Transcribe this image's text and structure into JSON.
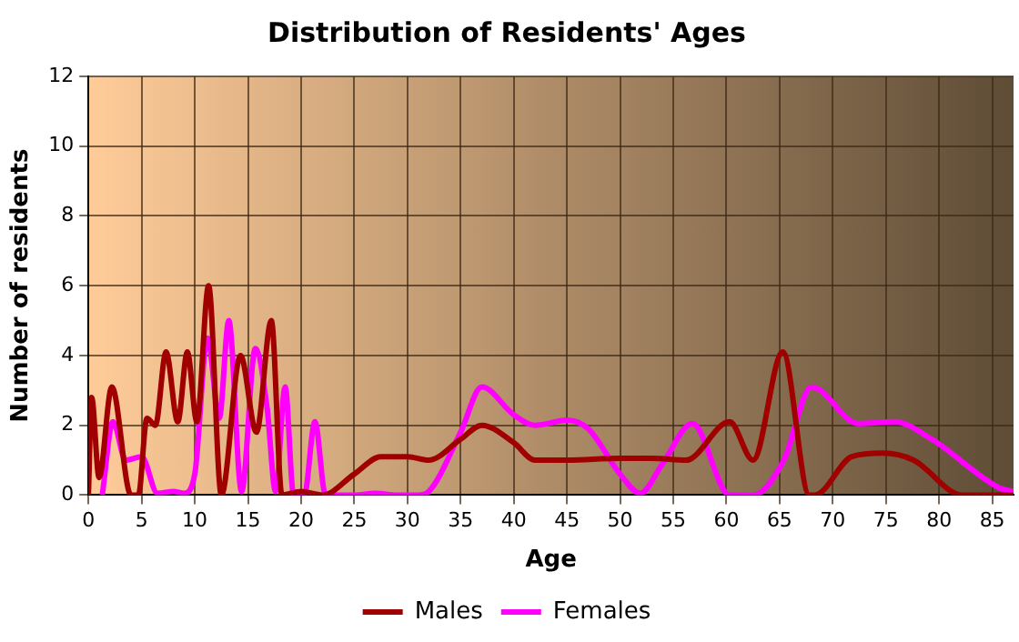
{
  "chart_data": {
    "type": "line",
    "title": "Distribution of Residents' Ages",
    "xlabel": "Age",
    "ylabel": "Number of residents",
    "xlim": [
      0,
      87
    ],
    "xticks": [
      0,
      5,
      10,
      15,
      20,
      25,
      30,
      35,
      40,
      45,
      50,
      55,
      60,
      65,
      70,
      75,
      80,
      85
    ],
    "ylim": [
      0,
      12
    ],
    "yticks": [
      0,
      2,
      4,
      6,
      8,
      10,
      12
    ],
    "grid": true,
    "legend": "bottom",
    "marker": "none",
    "line_style": "solid",
    "series": [
      {
        "name": "Males",
        "color": "#a00000",
        "x": [
          0,
          0.3,
          1,
          2.2,
          4,
          4.7,
          5.5,
          6.3,
          7.3,
          8.4,
          9.3,
          10.2,
          11.3,
          12.5,
          14.3,
          15.8,
          17.2,
          18.2,
          20,
          22,
          25,
          27.5,
          30,
          32,
          35,
          37,
          40,
          42,
          45,
          50,
          53,
          56.2,
          60.3,
          62.5,
          65.3,
          67.8,
          68.3,
          71.8,
          74.7,
          77.6,
          82.2,
          87
        ],
        "values": [
          0,
          2.8,
          0.5,
          3.1,
          0,
          0,
          2.2,
          2,
          4.1,
          2.1,
          4.1,
          2.1,
          6,
          0,
          4,
          1.8,
          5,
          0,
          0.1,
          0,
          0.6,
          1.1,
          1.1,
          1,
          1.6,
          2,
          1.5,
          1,
          1,
          1.05,
          1.05,
          1,
          2.1,
          1,
          4.1,
          0,
          0,
          1.1,
          1.2,
          1,
          0,
          0
        ]
      },
      {
        "name": "Females",
        "color": "#ff00ff",
        "x": [
          1.3,
          2.3,
          3.5,
          5,
          6.5,
          8,
          9,
          10,
          11.2,
          12.3,
          13.2,
          14.4,
          15.7,
          16.8,
          17.6,
          18.5,
          19.3,
          20.3,
          21.3,
          22.3,
          25,
          27,
          29,
          31,
          32,
          35,
          37,
          40,
          42,
          45,
          47,
          50,
          51.9,
          54,
          56.8,
          60.3,
          62.5,
          65.4,
          68,
          72.4,
          75.8,
          79.3,
          85.7,
          87
        ],
        "values": [
          0,
          2.1,
          1,
          1.1,
          0.05,
          0.1,
          0.05,
          0.6,
          4.5,
          2.2,
          5,
          0.1,
          4.2,
          2.5,
          0.1,
          3.1,
          0,
          0,
          2.1,
          0,
          0,
          0.05,
          0,
          0,
          0.1,
          1.8,
          3.1,
          2.3,
          2,
          2.15,
          1.9,
          0.6,
          0.05,
          0.9,
          2.05,
          0,
          0,
          1,
          3.1,
          2.05,
          2.1,
          1.6,
          0.2,
          0.1
        ]
      }
    ]
  }
}
